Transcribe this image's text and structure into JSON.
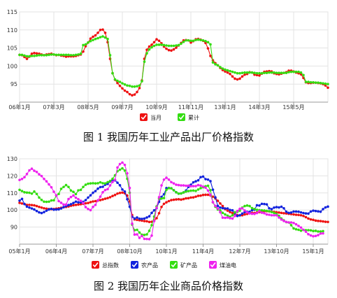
{
  "captions": {
    "fig1": "图 1  我国历年工业产品出厂价格指数",
    "fig2": "图 2 我国历年企业商品价格指数"
  },
  "colors": {
    "red": "#ee1111",
    "green": "#33dd11",
    "blue": "#1122dd",
    "magenta": "#ee22ee",
    "grid": "#e3e3e3",
    "axis": "#999999"
  },
  "chart_data": [
    {
      "type": "line",
      "title": "图 1  我国历年工业产品出厂价格指数",
      "xlabel": "",
      "ylabel": "",
      "ylim": [
        90,
        115
      ],
      "yticks": [
        95,
        100,
        105,
        110,
        115
      ],
      "x_tick_labels": [
        "06年1月",
        "07年3月",
        "08年5月",
        "09年7月",
        "10年9月",
        "11年11月",
        "13年1月",
        "14年3月",
        "15年5月"
      ],
      "x_tick_index": [
        0,
        14,
        28,
        42,
        56,
        70,
        84,
        98,
        112
      ],
      "grid": true,
      "legend": "bottom",
      "series": [
        {
          "name": "当月",
          "color": "red",
          "values": [
            103.1,
            103.0,
            102.5,
            102.0,
            102.6,
            103.4,
            103.6,
            103.5,
            103.4,
            103.2,
            103.0,
            103.2,
            103.3,
            103.4,
            103.2,
            103.0,
            103.1,
            102.9,
            102.8,
            102.6,
            102.7,
            102.7,
            102.7,
            102.8,
            103.0,
            103.2,
            104.0,
            105.5,
            106.5,
            107.6,
            108.1,
            108.5,
            109.2,
            110.0,
            110.1,
            109.2,
            106.6,
            102.0,
            98.0,
            96.2,
            95.3,
            94.5,
            93.8,
            93.2,
            92.8,
            92.2,
            91.9,
            92.1,
            92.8,
            93.9,
            96.0,
            102.0,
            104.5,
            105.4,
            105.9,
            106.6,
            107.4,
            107.0,
            106.3,
            105.4,
            104.8,
            104.4,
            104.3,
            104.6,
            105.1,
            105.7,
            106.4,
            107.1,
            107.2,
            107.1,
            106.5,
            106.9,
            107.4,
            107.5,
            107.3,
            107.0,
            106.4,
            104.9,
            102.8,
            101.6,
            100.8,
            100.2,
            99.5,
            98.9,
            98.5,
            98.2,
            97.8,
            97.1,
            96.5,
            96.3,
            96.5,
            97.1,
            97.6,
            97.8,
            98.3,
            98.2,
            97.6,
            97.5,
            97.4,
            97.9,
            98.4,
            98.5,
            98.6,
            98.5,
            98.0,
            97.8,
            97.7,
            97.9,
            98.1,
            98.3,
            98.7,
            98.7,
            98.5,
            98.2,
            98.0,
            97.7,
            96.7,
            95.5,
            95.3,
            95.3,
            95.4,
            95.4,
            95.3,
            95.2,
            95.0,
            94.6,
            94.0
          ]
        },
        {
          "name": "累计",
          "color": "green",
          "values": [
            103.1,
            103.1,
            102.9,
            102.7,
            102.7,
            102.8,
            102.8,
            102.9,
            103.0,
            103.0,
            103.0,
            103.0,
            103.1,
            103.2,
            103.2,
            103.1,
            103.1,
            103.1,
            103.1,
            103.1,
            103.1,
            103.0,
            103.0,
            103.1,
            103.2,
            103.4,
            105.8,
            106.0,
            106.5,
            106.9,
            107.2,
            107.5,
            107.7,
            108.0,
            108.2,
            107.9,
            107.5,
            103.0,
            98.0,
            96.3,
            95.9,
            95.6,
            95.2,
            94.9,
            94.6,
            94.5,
            94.3,
            94.3,
            94.4,
            94.6,
            95.8,
            101.2,
            103.5,
            104.6,
            105.2,
            105.6,
            105.9,
            105.9,
            105.9,
            105.8,
            105.7,
            105.6,
            105.6,
            105.6,
            105.7,
            105.8,
            106.2,
            106.7,
            107.1,
            107.1,
            107.0,
            107.0,
            107.2,
            107.3,
            107.2,
            107.1,
            106.9,
            106.6,
            106.0,
            101.0,
            100.5,
            100.2,
            99.7,
            99.3,
            99.0,
            98.8,
            98.6,
            98.4,
            98.2,
            98.0,
            98.0,
            98.1,
            98.2,
            98.2,
            98.2,
            98.2,
            98.1,
            98.0,
            98.0,
            98.0,
            98.1,
            98.1,
            98.2,
            98.2,
            98.2,
            98.1,
            98.1,
            98.1,
            98.1,
            98.1,
            98.3,
            98.4,
            98.4,
            98.4,
            98.4,
            98.2,
            97.5,
            95.6,
            95.6,
            95.5,
            95.5,
            95.4,
            95.4,
            95.3,
            95.2,
            95.1,
            95.0
          ]
        }
      ]
    },
    {
      "type": "line",
      "title": "图 2 我国历年企业商品价格指数",
      "xlabel": "",
      "ylabel": "",
      "ylim": [
        80,
        130
      ],
      "yticks": [
        90,
        100,
        110,
        120,
        130
      ],
      "x_tick_labels": [
        "05年1月",
        "06年4月",
        "07年7月",
        "08年10月",
        "10年1月",
        "11年4月",
        "12年7月",
        "13年10月",
        "15年1月"
      ],
      "x_tick_index": [
        0,
        15,
        30,
        45,
        60,
        75,
        90,
        105,
        120
      ],
      "grid": true,
      "legend": "bottom",
      "series": [
        {
          "name": "总指数",
          "color": "red",
          "values": [
            104.2,
            103.8,
            103.5,
            103.0,
            103.0,
            102.9,
            102.7,
            102.3,
            101.8,
            101.4,
            101.0,
            100.8,
            100.6,
            100.5,
            100.6,
            100.8,
            101.0,
            101.3,
            101.6,
            101.8,
            102.1,
            102.5,
            102.8,
            103.0,
            103.2,
            103.4,
            103.6,
            103.9,
            104.1,
            104.6,
            105.0,
            105.2,
            105.5,
            105.8,
            106.2,
            106.6,
            107.0,
            107.5,
            108.2,
            108.8,
            109.6,
            110.0,
            110.2,
            109.8,
            108.5,
            105.0,
            97.0,
            94.5,
            94.2,
            94.0,
            93.8,
            93.5,
            93.4,
            93.0,
            93.1,
            93.8,
            95.2,
            98.1,
            101.8,
            103.6,
            104.5,
            105.2,
            105.8,
            106.0,
            106.2,
            106.3,
            106.1,
            106.4,
            106.8,
            106.9,
            107.3,
            107.4,
            107.8,
            108.3,
            108.4,
            108.8,
            108.9,
            108.9,
            108.6,
            107.8,
            106.8,
            105.4,
            103.8,
            102.3,
            100.5,
            99.6,
            98.8,
            98.2,
            97.6,
            97.0,
            96.8,
            96.9,
            97.4,
            97.7,
            98.1,
            98.3,
            98.2,
            98.6,
            98.8,
            99.1,
            99.2,
            99.3,
            99.2,
            99.0,
            98.9,
            98.7,
            98.5,
            98.3,
            98.1,
            98.0,
            97.8,
            97.6,
            97.4,
            97.2,
            97.1,
            96.9,
            96.5,
            95.8,
            95.0,
            94.5,
            94.2,
            93.8,
            93.6,
            93.5,
            93.3,
            93.1,
            93.0
          ]
        },
        {
          "name": "农产品",
          "color": "blue",
          "values": [
            105.5,
            106.5,
            103.5,
            102.0,
            101.4,
            100.9,
            100.3,
            99.4,
            98.6,
            98.2,
            98.8,
            99.6,
            100.3,
            100.7,
            100.2,
            100.3,
            100.4,
            100.9,
            101.7,
            102.3,
            102.9,
            103.4,
            104.1,
            104.9,
            104.5,
            104.5,
            104.8,
            105.8,
            107.3,
            108.6,
            110.1,
            111.1,
            112.5,
            113.4,
            113.6,
            114.8,
            115.3,
            116.7,
            117.3,
            117.4,
            116.0,
            114.5,
            112.0,
            110.8,
            106.3,
            101.9,
            96.0,
            95.0,
            95.6,
            94.9,
            94.8,
            95.0,
            95.6,
            96.3,
            98.3,
            99.8,
            101.1,
            104.8,
            107.7,
            109.2,
            112.8,
            112.9,
            112.7,
            111.6,
            110.4,
            109.6,
            109.7,
            110.3,
            111.4,
            113.5,
            114.8,
            116.2,
            116.8,
            117.4,
            119.2,
            119.6,
            118.1,
            117.8,
            116.9,
            111.9,
            107.4,
            102.4,
            101.4,
            101.1,
            100.9,
            100.9,
            100.0,
            99.8,
            98.1,
            96.5,
            96.9,
            97.9,
            98.8,
            98.9,
            98.9,
            99.9,
            100.2,
            102.8,
            102.6,
            103.6,
            103.5,
            103.3,
            101.0,
            100.5,
            101.4,
            101.7,
            101.5,
            101.9,
            101.0,
            99.0,
            98.3,
            98.5,
            99.1,
            99.1,
            99.0,
            98.6,
            98.2,
            98.0,
            97.9,
            99.1,
            99.6,
            99.4,
            99.2,
            99.0,
            100.5,
            101.5,
            102.0
          ]
        },
        {
          "name": "矿产品",
          "color": "green",
          "values": [
            111.8,
            111.1,
            110.4,
            110.2,
            110.1,
            109.6,
            110.8,
            109.4,
            107.3,
            105.9,
            104.9,
            104.8,
            104.9,
            105.6,
            105.7,
            108.4,
            109.4,
            112.4,
            113.5,
            114.6,
            113.5,
            111.4,
            110.6,
            109.3,
            111.5,
            111.8,
            113.5,
            114.8,
            115.4,
            115.6,
            115.7,
            115.6,
            115.7,
            116.2,
            115.7,
            115.6,
            116.3,
            117.0,
            118.3,
            120.3,
            122.7,
            123.6,
            124.4,
            123.1,
            118.3,
            110.1,
            91.4,
            88.2,
            88.4,
            86.8,
            85.5,
            85.4,
            85.7,
            87.8,
            91.1,
            96.1,
            102.1,
            106.6,
            106.7,
            107.0,
            111.8,
            112.8,
            112.7,
            111.6,
            110.4,
            109.6,
            109.7,
            110.3,
            110.8,
            111.1,
            111.3,
            111.4,
            111.2,
            112.0,
            112.8,
            113.3,
            113.9,
            114.2,
            111.6,
            104.5,
            101.9,
            100.3,
            99.8,
            98.3,
            97.4,
            96.7,
            96.0,
            96.9,
            98.7,
            98.9,
            99.6,
            101.4,
            102.3,
            102.6,
            102.3,
            101.1,
            100.6,
            100.1,
            99.9,
            99.8,
            99.7,
            99.5,
            99.3,
            98.8,
            98.3,
            97.7,
            96.6,
            95.0,
            93.9,
            92.9,
            92.7,
            91.1,
            89.2,
            88.7,
            88.4,
            87.9,
            88.3,
            88.2,
            88.2,
            88.1,
            87.7,
            87.8,
            87.4,
            87.4,
            87.6
          ]
        },
        {
          "name": "煤油电",
          "color": "magenta",
          "values": [
            117.6,
            118.2,
            119.2,
            121.1,
            123.2,
            124.2,
            123.0,
            122.3,
            120.9,
            119.9,
            118.2,
            116.8,
            115.0,
            113.3,
            110.7,
            108.6,
            105.2,
            104.2,
            103.2,
            103.2,
            106.4,
            107.6,
            108.5,
            107.2,
            106.3,
            105.4,
            104.1,
            101.7,
            100.6,
            99.9,
            101.8,
            103.0,
            105.7,
            107.8,
            110.4,
            111.7,
            112.2,
            114.4,
            116.4,
            117.7,
            124.9,
            126.9,
            127.8,
            126.4,
            121.5,
            112.9,
            92.0,
            85.6,
            85.7,
            83.7,
            84.8,
            83.1,
            83.0,
            82.9,
            85.0,
            93.5,
            101.3,
            107.5,
            114.4,
            117.8,
            118.9,
            117.8,
            116.3,
            115.6,
            114.8,
            114.6,
            114.4,
            114.4,
            114.2,
            114.3,
            113.9,
            114.0,
            114.0,
            114.6,
            114.3,
            113.7,
            113.1,
            111.4,
            109.0,
            104.6,
            102.4,
            100.9,
            98.7,
            95.5,
            95.4,
            95.6,
            95.2,
            95.0,
            96.5,
            99.4,
            100.7,
            101.0,
            99.7,
            98.6,
            98.0,
            97.8,
            97.7,
            98.2,
            99.3,
            98.4,
            98.1,
            97.4,
            97.2,
            96.9,
            96.9,
            96.9,
            95.6,
            94.4,
            93.6,
            93.0,
            92.7,
            92.7,
            92.4,
            91.6,
            90.7,
            89.7,
            88.4,
            87.3,
            85.8,
            85.1,
            84.6,
            84.8,
            85.3,
            86.2,
            86.3
          ]
        }
      ]
    }
  ]
}
